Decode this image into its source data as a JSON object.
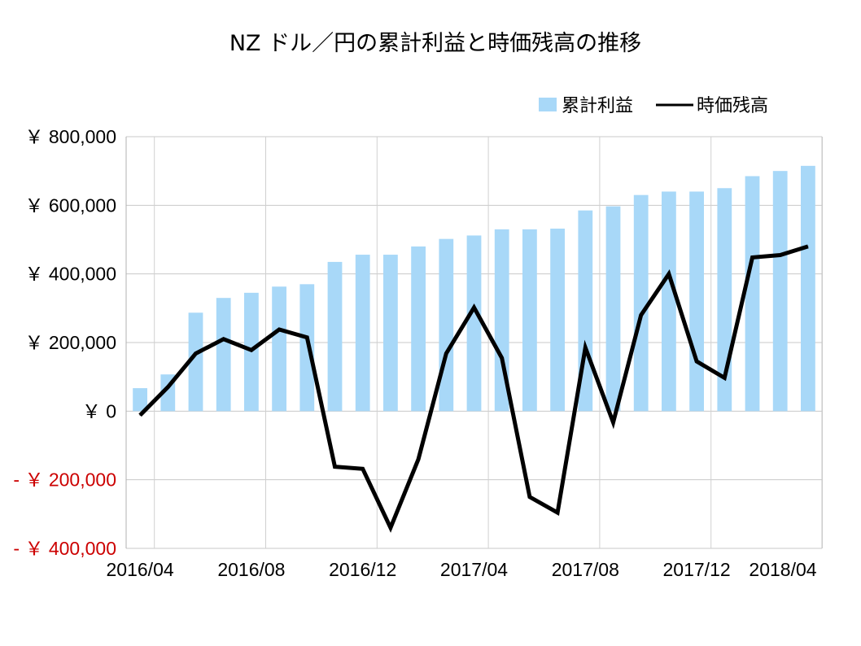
{
  "chart_data": {
    "type": "bar",
    "title": "NZ ドル／円の累計利益と時価残高の推移",
    "legend_position": "top-right",
    "grid": true,
    "ylim": [
      -400000,
      800000
    ],
    "yticks": [
      {
        "value": 800000,
        "label": "￥ 800,000"
      },
      {
        "value": 600000,
        "label": "￥ 600,000"
      },
      {
        "value": 400000,
        "label": "￥ 400,000"
      },
      {
        "value": 200000,
        "label": "￥ 200,000"
      },
      {
        "value": 0,
        "label": "￥ 0"
      },
      {
        "value": -200000,
        "label": "- ￥ 200,000"
      },
      {
        "value": -400000,
        "label": "- ￥ 400,000"
      }
    ],
    "xticks": [
      {
        "index": 0,
        "label": "2016/04"
      },
      {
        "index": 4,
        "label": "2016/08"
      },
      {
        "index": 8,
        "label": "2016/12"
      },
      {
        "index": 12,
        "label": "2017/04"
      },
      {
        "index": 16,
        "label": "2017/08"
      },
      {
        "index": 20,
        "label": "2017/12"
      },
      {
        "index": 24,
        "label": "2018/04"
      }
    ],
    "categories": [
      "2016/04",
      "2016/05",
      "2016/06",
      "2016/07",
      "2016/08",
      "2016/09",
      "2016/10",
      "2016/11",
      "2016/12",
      "2017/01",
      "2017/02",
      "2017/03",
      "2017/04",
      "2017/05",
      "2017/06",
      "2017/07",
      "2017/08",
      "2017/09",
      "2017/10",
      "2017/11",
      "2017/12",
      "2018/01",
      "2018/02",
      "2018/03",
      "2018/04"
    ],
    "series": [
      {
        "name": "累計利益",
        "kind": "bar",
        "color": "#a8d8f8",
        "values": [
          67000,
          107000,
          287000,
          330000,
          345000,
          363000,
          370000,
          435000,
          456000,
          456000,
          480000,
          502000,
          512000,
          530000,
          530000,
          532000,
          585000,
          597000,
          630000,
          640000,
          640000,
          650000,
          685000,
          700000,
          715000
        ]
      },
      {
        "name": "時価残高",
        "kind": "line",
        "color": "#000000",
        "values": [
          -12000,
          70000,
          168000,
          210000,
          178000,
          238000,
          215000,
          -162000,
          -168000,
          -340000,
          -140000,
          168000,
          302000,
          155000,
          -250000,
          -296000,
          185000,
          -33000,
          280000,
          400000,
          145000,
          97000,
          448000,
          455000,
          480000
        ]
      }
    ]
  }
}
